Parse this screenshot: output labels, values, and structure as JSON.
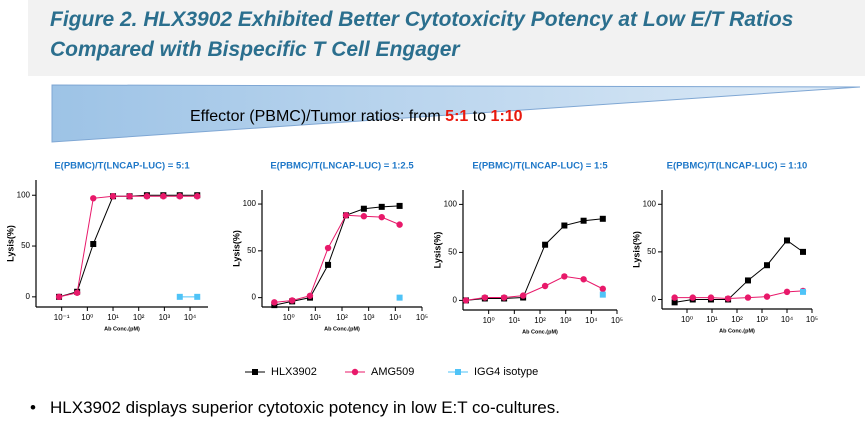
{
  "header": {
    "title_lines": [
      "Figure 2. HLX3902 Exhibited Better Cytotoxicity Potency at Low E/T Ratios",
      "Compared with Bispecific T Cell Engager"
    ]
  },
  "banner": {
    "text": "Effector (PBMC)/Tumor ratios: from",
    "from": "5:1",
    "joiner": "to",
    "to": "1:10"
  },
  "chart_data": [
    {
      "type": "scatter",
      "title": "E(PBMC)/T(LNCAP-LUC) = 5:1",
      "x_label": "Ab Conc.(pM)",
      "y_label": "Lysis(%)",
      "log_x": true,
      "xlim": [
        0.01,
        50000
      ],
      "xticks": [
        {
          "value": 0.1,
          "label": "10⁻¹"
        },
        {
          "value": 1,
          "label": "10⁰"
        },
        {
          "value": 10,
          "label": "10¹"
        },
        {
          "value": 100,
          "label": "10²"
        },
        {
          "value": 1000,
          "label": "10³"
        },
        {
          "value": 10000,
          "label": "10⁴"
        }
      ],
      "ylim": [
        -10,
        115
      ],
      "yticks": [
        0,
        50,
        100
      ],
      "x": [
        0.079,
        0.4,
        1.7,
        10,
        44,
        209,
        912,
        3981,
        19055
      ],
      "series": [
        {
          "name": "HLX3902",
          "color": "#000000",
          "marker": "square",
          "values": [
            0,
            5,
            52,
            99,
            99,
            100,
            100,
            100,
            100
          ]
        },
        {
          "name": "AMG509",
          "color": "#e8196a",
          "marker": "circle",
          "values": [
            0,
            4,
            97,
            99,
            99,
            99,
            99,
            99,
            99
          ]
        },
        {
          "name": "IGG4 isotype",
          "color": "#4fc3f7",
          "marker": "square",
          "values": [
            null,
            null,
            null,
            null,
            null,
            null,
            null,
            0,
            0
          ]
        }
      ]
    },
    {
      "type": "scatter",
      "title": "E(PBMC)/T(LNCAP-LUC) = 1:2.5",
      "x_label": "Ab Conc.(pM)",
      "y_label": "Lysis(%)",
      "log_x": true,
      "xlim": [
        0.1,
        100000
      ],
      "xticks": [
        {
          "value": 1,
          "label": "10⁰"
        },
        {
          "value": 10,
          "label": "10¹"
        },
        {
          "value": 100,
          "label": "10²"
        },
        {
          "value": 1000,
          "label": "10³"
        },
        {
          "value": 10000,
          "label": "10⁴"
        },
        {
          "value": 100000,
          "label": "10⁵"
        }
      ],
      "ylim": [
        -10,
        115
      ],
      "yticks": [
        0,
        50,
        100
      ],
      "x": [
        0.29,
        1.35,
        6.3,
        30,
        141,
        661,
        3090,
        14454
      ],
      "series": [
        {
          "name": "HLX3902",
          "color": "#000000",
          "marker": "square",
          "values": [
            -8,
            -4,
            0,
            35,
            88,
            95,
            97,
            98
          ]
        },
        {
          "name": "AMG509",
          "color": "#e8196a",
          "marker": "circle",
          "values": [
            -5,
            -3,
            2,
            53,
            88,
            87,
            86,
            78
          ]
        },
        {
          "name": "IGG4 isotype",
          "color": "#4fc3f7",
          "marker": "square",
          "values": [
            null,
            null,
            null,
            null,
            null,
            null,
            null,
            0
          ]
        }
      ]
    },
    {
      "type": "scatter",
      "title": "E(PBMC)/T(LNCAP-LUC) = 1:5",
      "x_label": "Ab Conc.(pM)",
      "y_label": "Lysis(%)",
      "log_x": true,
      "xlim": [
        0.1,
        100000
      ],
      "xticks": [
        {
          "value": 1,
          "label": "10⁰"
        },
        {
          "value": 10,
          "label": "10¹"
        },
        {
          "value": 100,
          "label": "10²"
        },
        {
          "value": 1000,
          "label": "10³"
        },
        {
          "value": 10000,
          "label": "10⁴"
        },
        {
          "value": 100000,
          "label": "10⁵"
        }
      ],
      "ylim": [
        -10,
        115
      ],
      "yticks": [
        0,
        50,
        100
      ],
      "x": [
        0.13,
        0.71,
        4,
        22,
        158,
        890,
        5000,
        28000
      ],
      "series": [
        {
          "name": "HLX3902",
          "color": "#000000",
          "marker": "square",
          "values": [
            0,
            2,
            2,
            3,
            58,
            78,
            83,
            85
          ]
        },
        {
          "name": "AMG509",
          "color": "#e8196a",
          "marker": "circle",
          "values": [
            0,
            3,
            3,
            5,
            15,
            25,
            22,
            12
          ]
        },
        {
          "name": "IGG4 isotype",
          "color": "#4fc3f7",
          "marker": "square",
          "values": [
            null,
            null,
            null,
            null,
            null,
            null,
            null,
            6
          ]
        }
      ]
    },
    {
      "type": "scatter",
      "title": "E(PBMC)/T(LNCAP-LUC) = 1:10",
      "x_label": "Ab Conc.(pM)",
      "y_label": "Lysis(%)",
      "log_x": true,
      "xlim": [
        0.1,
        100000
      ],
      "xticks": [
        {
          "value": 1,
          "label": "10⁰"
        },
        {
          "value": 10,
          "label": "10¹"
        },
        {
          "value": 100,
          "label": "10²"
        },
        {
          "value": 1000,
          "label": "10³"
        },
        {
          "value": 10000,
          "label": "10⁴"
        },
        {
          "value": 100000,
          "label": "10⁵"
        }
      ],
      "ylim": [
        -10,
        115
      ],
      "yticks": [
        0,
        50,
        100
      ],
      "x": [
        0.32,
        1.7,
        9.1,
        44,
        275,
        1585,
        10000,
        43650
      ],
      "series": [
        {
          "name": "HLX3902",
          "color": "#000000",
          "marker": "square",
          "values": [
            -3,
            0,
            0,
            0,
            20,
            36,
            62,
            50
          ]
        },
        {
          "name": "AMG509",
          "color": "#e8196a",
          "marker": "circle",
          "values": [
            2,
            2,
            2,
            1,
            2,
            3,
            8,
            9
          ]
        },
        {
          "name": "IGG4 isotype",
          "color": "#4fc3f7",
          "marker": "square",
          "values": [
            null,
            null,
            null,
            null,
            null,
            null,
            null,
            8
          ]
        }
      ]
    }
  ],
  "bullet": "HLX3902 displays superior cytotoxic potency in low E:T co-cultures."
}
